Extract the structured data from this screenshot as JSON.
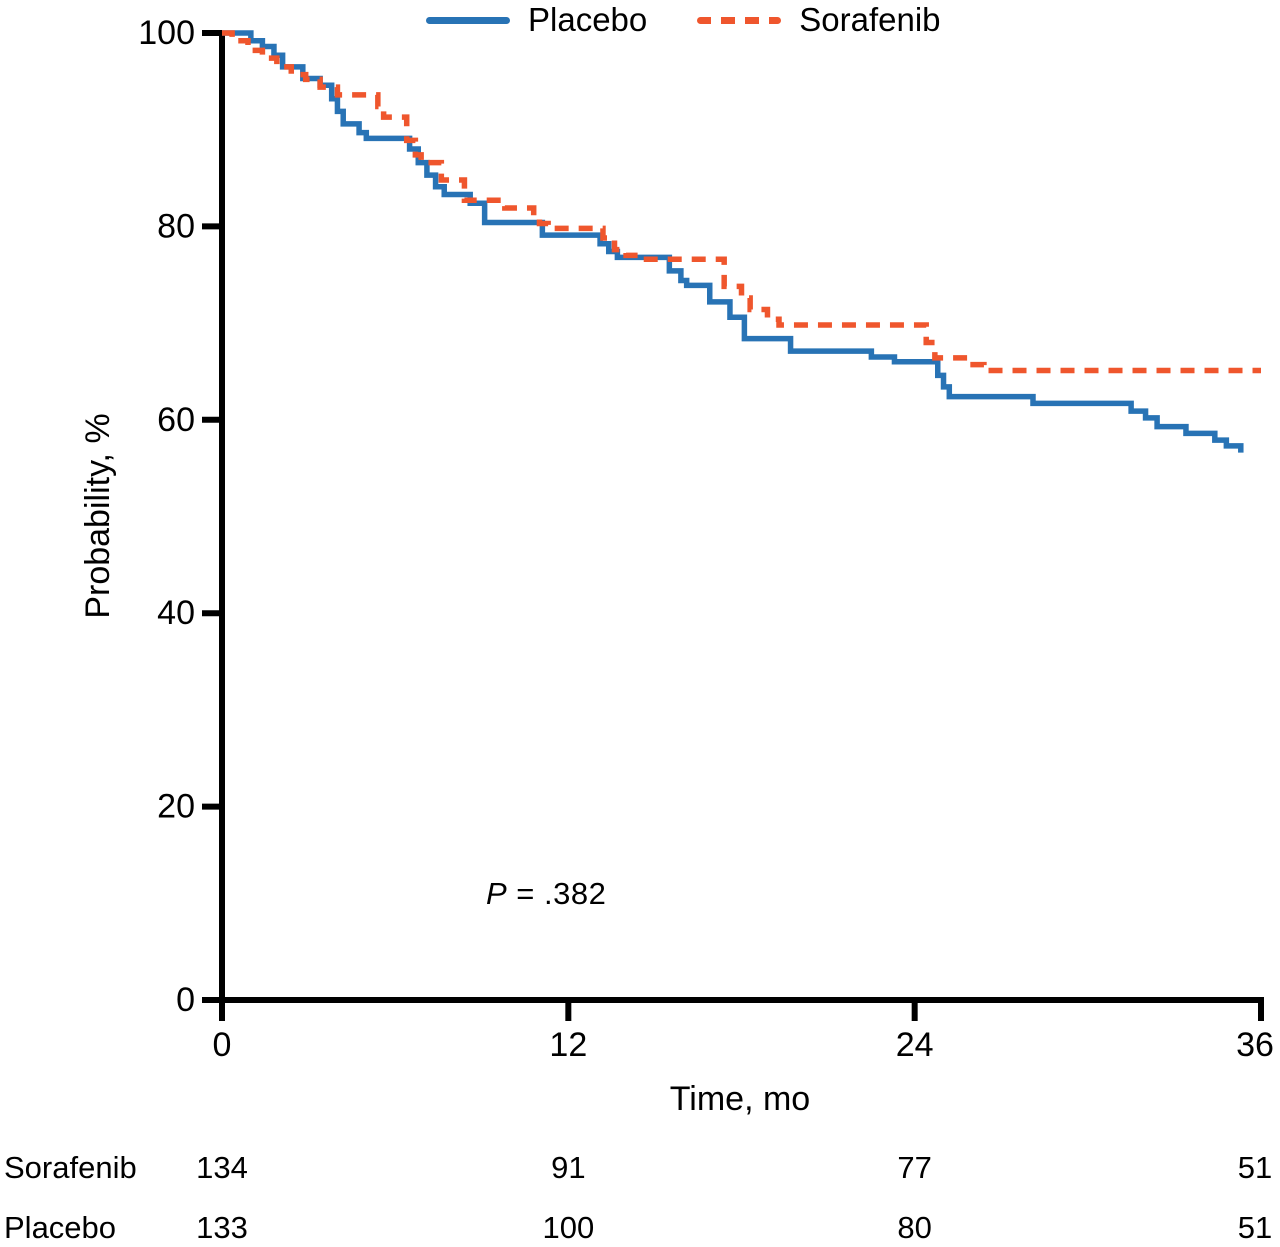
{
  "background": "#ffffff",
  "chart_data": {
    "type": "line",
    "subtype": "kaplan-meier-step",
    "title": "",
    "xlabel": "Time, mo",
    "ylabel": "Probability, %",
    "xlim": [
      0,
      36
    ],
    "ylim": [
      0,
      100
    ],
    "x_ticks": [
      0,
      12,
      24,
      36
    ],
    "y_ticks": [
      100,
      80,
      60,
      40,
      20,
      0
    ],
    "grid": false,
    "legend_position": "top-center",
    "axis_color": "#000000",
    "annotation": {
      "p_label": "P",
      "rest": " = .382"
    },
    "series": [
      {
        "name": "Placebo",
        "color": "#2873B5",
        "style": "solid",
        "points": [
          [
            0,
            100
          ],
          [
            1.0,
            99.2
          ],
          [
            1.4,
            98.6
          ],
          [
            1.8,
            97.7
          ],
          [
            2.1,
            96.5
          ],
          [
            2.8,
            95.3
          ],
          [
            3.4,
            94.6
          ],
          [
            3.8,
            93.2
          ],
          [
            4.0,
            91.9
          ],
          [
            4.2,
            90.6
          ],
          [
            4.75,
            89.7
          ],
          [
            5.0,
            89.1
          ],
          [
            6.5,
            88.0
          ],
          [
            6.8,
            86.6
          ],
          [
            7.1,
            85.3
          ],
          [
            7.4,
            84.1
          ],
          [
            7.7,
            83.3
          ],
          [
            8.6,
            82.4
          ],
          [
            9.1,
            80.4
          ],
          [
            11.1,
            79.1
          ],
          [
            13.1,
            78.2
          ],
          [
            13.4,
            77.4
          ],
          [
            13.7,
            76.8
          ],
          [
            15.5,
            75.4
          ],
          [
            15.9,
            74.4
          ],
          [
            16.1,
            73.9
          ],
          [
            16.9,
            72.2
          ],
          [
            17.6,
            70.6
          ],
          [
            18.1,
            68.4
          ],
          [
            19.7,
            67.1
          ],
          [
            22.5,
            66.5
          ],
          [
            23.3,
            66.0
          ],
          [
            24.8,
            64.6
          ],
          [
            25.0,
            63.4
          ],
          [
            25.2,
            62.4
          ],
          [
            28.1,
            61.7
          ],
          [
            31.5,
            60.9
          ],
          [
            32.0,
            60.2
          ],
          [
            32.4,
            59.3
          ],
          [
            33.4,
            58.6
          ],
          [
            34.4,
            57.9
          ],
          [
            34.8,
            57.3
          ],
          [
            35.3,
            56.6
          ]
        ]
      },
      {
        "name": "Sorafenib",
        "color": "#EF562D",
        "style": "dashed",
        "points": [
          [
            0,
            100
          ],
          [
            0.35,
            99.2
          ],
          [
            0.9,
            98.2
          ],
          [
            1.4,
            97.4
          ],
          [
            1.9,
            96.5
          ],
          [
            2.4,
            95.7
          ],
          [
            2.9,
            95.2
          ],
          [
            3.4,
            94.4
          ],
          [
            4.0,
            93.6
          ],
          [
            5.4,
            92.4
          ],
          [
            5.6,
            91.3
          ],
          [
            6.4,
            88.9
          ],
          [
            6.7,
            87.4
          ],
          [
            6.9,
            86.6
          ],
          [
            7.6,
            84.8
          ],
          [
            8.4,
            82.7
          ],
          [
            9.8,
            81.9
          ],
          [
            10.8,
            80.9
          ],
          [
            11.0,
            80.3
          ],
          [
            11.3,
            79.8
          ],
          [
            13.2,
            78.8
          ],
          [
            13.6,
            77.6
          ],
          [
            14.0,
            77.0
          ],
          [
            14.4,
            76.6
          ],
          [
            17.4,
            73.8
          ],
          [
            18.0,
            72.6
          ],
          [
            18.3,
            71.4
          ],
          [
            18.9,
            70.4
          ],
          [
            19.3,
            69.8
          ],
          [
            24.4,
            68.0
          ],
          [
            24.7,
            66.4
          ],
          [
            25.9,
            65.7
          ],
          [
            26.4,
            65.1
          ],
          [
            36,
            65.1
          ]
        ]
      }
    ],
    "risk_table": {
      "times": [
        0,
        12,
        24,
        36
      ],
      "rows": [
        {
          "name": "Sorafenib",
          "counts": [
            134,
            91,
            77,
            51
          ]
        },
        {
          "name": "Placebo",
          "counts": [
            133,
            100,
            80,
            51
          ]
        }
      ]
    }
  }
}
